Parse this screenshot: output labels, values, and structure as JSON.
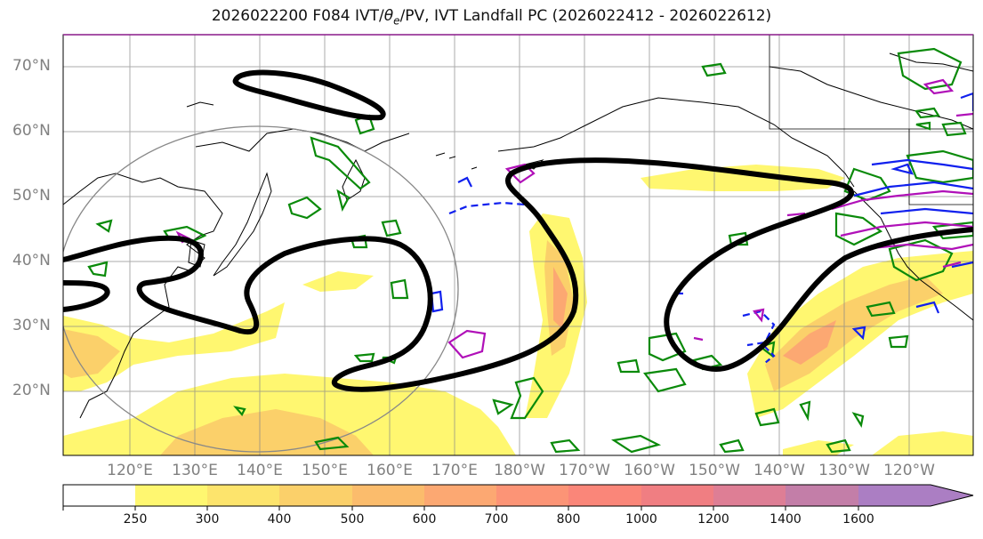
{
  "title_prefix": "2026022200 F084 IVT/",
  "title_theta": "θ",
  "title_sub": "e",
  "title_suffix": "/PV, IVT Landfall PC (2026022412 - 2026022612)",
  "lat_labels": [
    "70°N",
    "60°N",
    "50°N",
    "40°N",
    "30°N",
    "20°N"
  ],
  "lon_labels": [
    "120°E",
    "130°E",
    "140°E",
    "150°E",
    "160°E",
    "170°E",
    "180°W",
    "170°W",
    "160°W",
    "150°W",
    "140°W",
    "130°W",
    "120°W"
  ],
  "colorbar": {
    "ticks": [
      "250",
      "300",
      "400",
      "500",
      "600",
      "700",
      "800",
      "1000",
      "1200",
      "1400",
      "1600"
    ],
    "colors": [
      "#ffffff",
      "#fff770",
      "#fde46c",
      "#fbd06a",
      "#fbbc6c",
      "#fca872",
      "#fc9476",
      "#fa8679",
      "#f07e82",
      "#de7e95",
      "#c37ea8",
      "#ab7ec3"
    ]
  },
  "colors": {
    "ivt_fill_light": "#fff770",
    "ivt_fill_mid": "#fbd06a",
    "ivt_fill_strong": "#fca872",
    "theta_e": "#000000",
    "pv_green": "#0a8a0a",
    "pv_blue": "#1020ee",
    "pv_magenta": "#b010b8",
    "ellipse": "#888888"
  }
}
